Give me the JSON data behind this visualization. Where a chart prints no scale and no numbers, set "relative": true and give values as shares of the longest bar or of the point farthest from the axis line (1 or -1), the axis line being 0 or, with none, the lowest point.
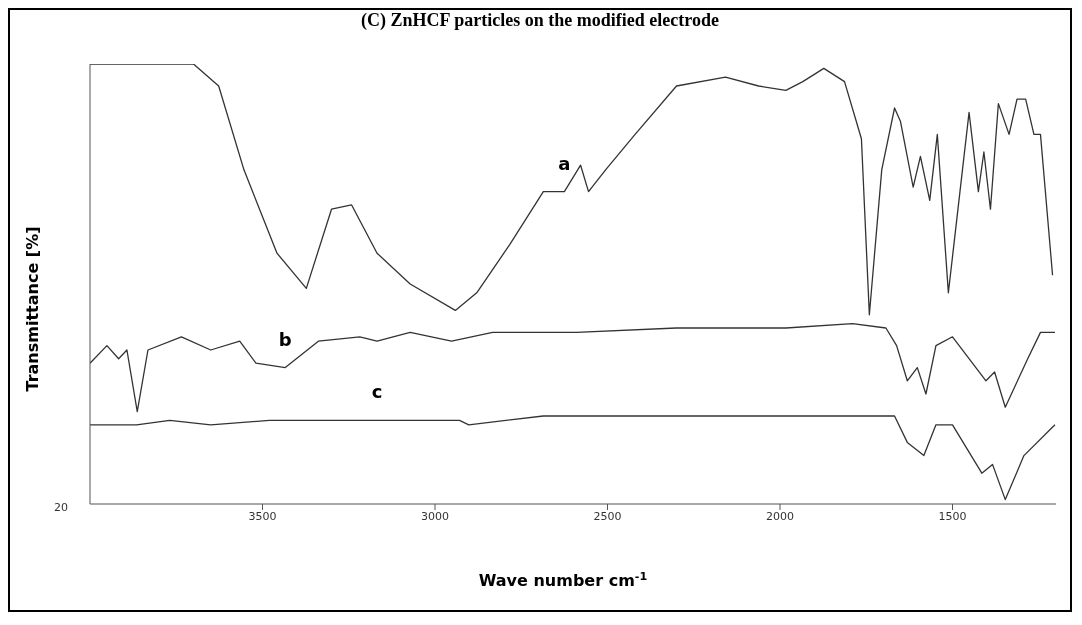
{
  "chart_data": {
    "type": "line",
    "title": "(C) ZnHCF particles on the modified electrode",
    "xlabel": "Wave number cm$^{-1}$",
    "ylabel": "Transmittance [%]",
    "relative": true,
    "xlim": [
      4000,
      1200
    ],
    "xticks": [
      3500,
      3000,
      2500,
      2000,
      1500
    ],
    "grid": false,
    "legend": false,
    "marker": "none",
    "line_style": "solid",
    "annotations": [
      "20"
    ],
    "series": [
      {
        "name": "a",
        "color": "#333333",
        "x": [
          4000,
          3700,
          3627,
          3554,
          3458,
          3373,
          3300,
          3242,
          3168,
          3072,
          2941,
          2879,
          2783,
          2686,
          2625,
          2578,
          2555,
          2505,
          2420,
          2300,
          2158,
          2062,
          1983,
          1934,
          1873,
          1813,
          1764,
          1741,
          1705,
          1668,
          1651,
          1614,
          1593,
          1566,
          1544,
          1512,
          1452,
          1425,
          1409,
          1390,
          1367,
          1336,
          1313,
          1288,
          1264,
          1245,
          1210
        ],
        "values": [
          1.0,
          1.0,
          0.95,
          0.76,
          0.57,
          0.49,
          0.67,
          0.68,
          0.57,
          0.5,
          0.44,
          0.48,
          0.59,
          0.71,
          0.71,
          0.77,
          0.71,
          0.76,
          0.84,
          0.95,
          0.97,
          0.95,
          0.94,
          0.96,
          0.99,
          0.96,
          0.83,
          0.43,
          0.76,
          0.9,
          0.87,
          0.72,
          0.79,
          0.69,
          0.84,
          0.48,
          0.89,
          0.71,
          0.8,
          0.67,
          0.91,
          0.84,
          0.92,
          0.92,
          0.84,
          0.84,
          0.52
        ]
      },
      {
        "name": "b",
        "color": "#333333",
        "x": [
          4000,
          3951,
          3917,
          3893,
          3863,
          3832,
          3735,
          3650,
          3566,
          3519,
          3434,
          3338,
          3218,
          3168,
          3072,
          2952,
          2833,
          2590,
          2300,
          1983,
          1790,
          1693,
          1662,
          1631,
          1602,
          1577,
          1548,
          1500,
          1403,
          1378,
          1347,
          1282,
          1245,
          1203
        ],
        "values": [
          0.32,
          0.36,
          0.33,
          0.35,
          0.21,
          0.35,
          0.38,
          0.35,
          0.37,
          0.32,
          0.31,
          0.37,
          0.38,
          0.37,
          0.39,
          0.37,
          0.39,
          0.39,
          0.4,
          0.4,
          0.41,
          0.4,
          0.36,
          0.28,
          0.31,
          0.25,
          0.36,
          0.38,
          0.28,
          0.3,
          0.22,
          0.33,
          0.39,
          0.39
        ]
      },
      {
        "name": "c",
        "color": "#333333",
        "x": [
          4000,
          3865,
          3769,
          3650,
          3480,
          3338,
          3168,
          2929,
          2902,
          2686,
          2300,
          1668,
          1631,
          1583,
          1548,
          1500,
          1415,
          1384,
          1347,
          1293,
          1203
        ],
        "values": [
          0.18,
          0.18,
          0.19,
          0.18,
          0.19,
          0.19,
          0.19,
          0.19,
          0.18,
          0.2,
          0.2,
          0.2,
          0.14,
          0.11,
          0.18,
          0.18,
          0.07,
          0.09,
          0.01,
          0.11,
          0.18
        ]
      }
    ]
  }
}
